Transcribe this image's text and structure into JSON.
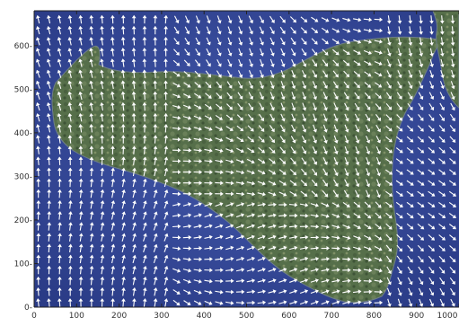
{
  "map": {
    "subject": "Satellite image of Sicily with wind-vector arrows overlaid",
    "colors": {
      "sea": "#3a4fa3",
      "sea_dark": "#24357f",
      "land": "#55704a",
      "land_dark": "#3f5536",
      "land_light": "#7a8f5f",
      "arrow": "#ffffff",
      "axis": "#222222"
    },
    "axes": {
      "x": {
        "min": 0,
        "max": 1000,
        "ticks": [
          0,
          100,
          200,
          300,
          400,
          500,
          600,
          700,
          800,
          900,
          1000
        ],
        "tick_labels": [
          "0",
          "100",
          "200",
          "300",
          "400",
          "500",
          "600",
          "700",
          "800",
          "900",
          "1000"
        ]
      },
      "y": {
        "min": 0,
        "max": 680,
        "ticks": [
          0,
          100,
          200,
          300,
          400,
          500,
          600
        ],
        "tick_labels": [
          "0-",
          "100-",
          "200-",
          "300-",
          "400-",
          "500-",
          "600-"
        ]
      }
    },
    "wind_field": {
      "grid_spacing_x": 25,
      "grid_spacing_y": 25,
      "arrow_icon": "arrow-icon"
    }
  }
}
